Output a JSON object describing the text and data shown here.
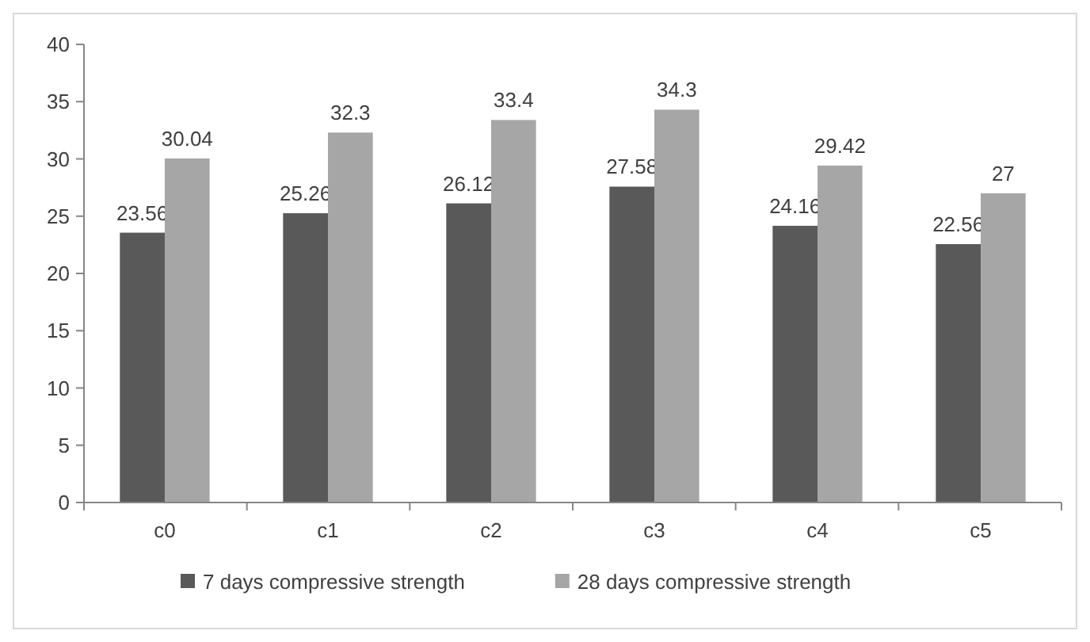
{
  "chart_data": {
    "type": "bar",
    "categories": [
      "c0",
      "c1",
      "c2",
      "c3",
      "c4",
      "c5"
    ],
    "series": [
      {
        "name": "7 days compressive strength",
        "color": "#595959",
        "values": [
          23.56,
          25.26,
          26.12,
          27.58,
          24.16,
          22.56
        ]
      },
      {
        "name": "28 days compressive strength",
        "color": "#a6a6a6",
        "values": [
          30.04,
          32.3,
          33.4,
          34.3,
          29.42,
          27
        ]
      }
    ],
    "ylim": [
      0,
      40
    ],
    "yticks": [
      0,
      5,
      10,
      15,
      20,
      25,
      30,
      35,
      40
    ],
    "data_labels": true,
    "grid": false,
    "legend": "bottom"
  }
}
